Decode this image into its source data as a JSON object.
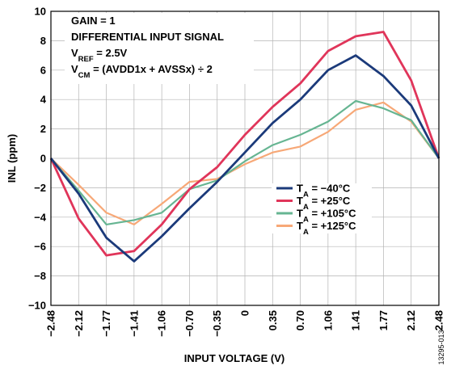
{
  "figure_id": "13295-013",
  "chart_data": {
    "type": "line",
    "xlabel": "INPUT VOLTAGE (V)",
    "ylabel": "INL (ppm)",
    "ylim": [
      -10,
      10
    ],
    "yticks": [
      10,
      8,
      6,
      4,
      2,
      0,
      -2,
      -4,
      -6,
      -8,
      -10
    ],
    "ytick_labels": [
      "10",
      "8",
      "6",
      "4",
      "2",
      "0",
      "−2",
      "−4",
      "−6",
      "−8",
      "−10"
    ],
    "categories": [
      "−2.48",
      "−2.12",
      "−1.77",
      "−1.41",
      "−1.06",
      "−0.70",
      "−0.35",
      "0",
      "0.35",
      "0.70",
      "1.06",
      "1.41",
      "1.77",
      "2.12",
      "2.48"
    ],
    "x": [
      -2.48,
      -2.12,
      -1.77,
      -1.41,
      -1.06,
      -0.7,
      -0.35,
      0,
      0.35,
      0.7,
      1.06,
      1.41,
      1.77,
      2.12,
      2.48
    ],
    "grid": true,
    "legend_placement": "lower-right",
    "annotations": [
      {
        "parts": [
          {
            "t": "GAIN = 1"
          }
        ]
      },
      {
        "parts": [
          {
            "t": "DIFFERENTIAL INPUT SIGNAL"
          }
        ]
      },
      {
        "parts": [
          {
            "t": "V"
          },
          {
            "t": "REF",
            "sub": true
          },
          {
            "t": " = 2.5V"
          }
        ]
      },
      {
        "parts": [
          {
            "t": "V"
          },
          {
            "t": "CM",
            "sub": true
          },
          {
            "t": " = (AVDD1x + AVSSx) ÷ 2"
          }
        ]
      }
    ],
    "series": [
      {
        "name": "−40°C",
        "label_prefix": "T",
        "label_sub": "A",
        "label_suffix": " = −40°C",
        "color": "#1b3a7a",
        "values": [
          0,
          -2.4,
          -5.4,
          -7.0,
          -5.3,
          -3.4,
          -1.6,
          0.4,
          2.4,
          4.0,
          6.0,
          7.0,
          5.6,
          3.6,
          0
        ]
      },
      {
        "name": "+25°C",
        "label_prefix": "T",
        "label_sub": "A",
        "label_suffix": " = +25°C",
        "color": "#e0355a",
        "values": [
          0,
          -4.1,
          -6.6,
          -6.3,
          -4.5,
          -2.1,
          -0.6,
          1.6,
          3.5,
          5.1,
          7.3,
          8.3,
          8.6,
          5.3,
          0
        ]
      },
      {
        "name": "+105°C",
        "label_prefix": "T",
        "label_sub": "A",
        "label_suffix": " = +105°C",
        "color": "#66b592",
        "values": [
          0,
          -2.2,
          -4.5,
          -4.2,
          -3.7,
          -2.1,
          -1.5,
          -0.2,
          0.9,
          1.6,
          2.5,
          3.9,
          3.4,
          2.6,
          0
        ]
      },
      {
        "name": "+125°C",
        "label_prefix": "T",
        "label_sub": "A",
        "label_suffix": " = +125°C",
        "color": "#f7a877",
        "values": [
          0,
          -1.8,
          -3.7,
          -4.5,
          -3.1,
          -1.6,
          -1.4,
          -0.4,
          0.4,
          0.8,
          1.8,
          3.3,
          3.8,
          2.5,
          0
        ]
      }
    ]
  }
}
